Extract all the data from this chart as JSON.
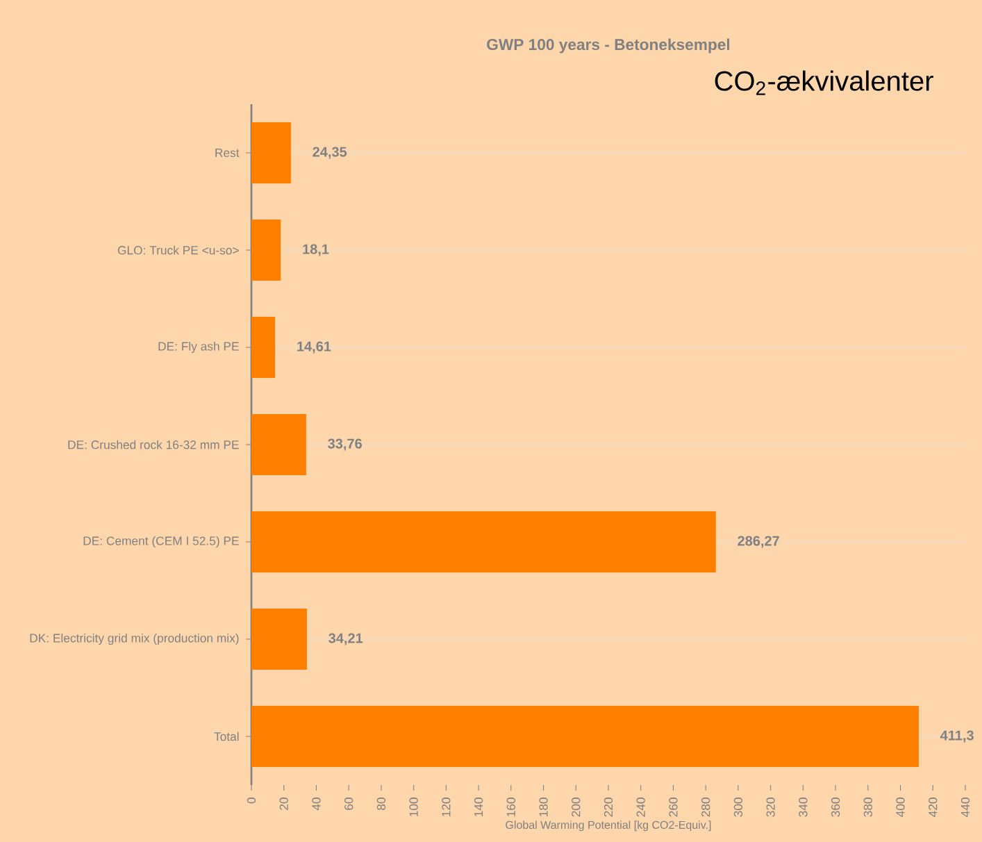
{
  "chart_data": {
    "type": "bar",
    "orientation": "horizontal",
    "title": "GWP 100 years - Betoneksempel",
    "xlabel": "Global Warming Potential [kg CO2-Equiv.]",
    "annotations": [
      "CO$_{2}$-ækvivalenter"
    ],
    "categories": [
      "Rest",
      "GLO: Truck PE <u-so>",
      "DE: Fly ash PE",
      "DE: Crushed rock 16-32 mm PE",
      "DE: Cement (CEM I 52.5) PE",
      "DK: Electricity grid mix (production mix)",
      "Total"
    ],
    "values": [
      24.35,
      18.1,
      14.61,
      33.76,
      286.27,
      34.21,
      411.3
    ],
    "value_labels": [
      "24,35",
      "18,1",
      "14,61",
      "33,76",
      "286,27",
      "34,21",
      "411,3"
    ],
    "color": "#ff8000",
    "xlim": [
      0,
      440
    ],
    "xticks": [
      0,
      20,
      40,
      60,
      80,
      100,
      120,
      140,
      160,
      180,
      200,
      220,
      240,
      260,
      280,
      300,
      320,
      340,
      360,
      380,
      400,
      420,
      440
    ],
    "grid": "y"
  }
}
